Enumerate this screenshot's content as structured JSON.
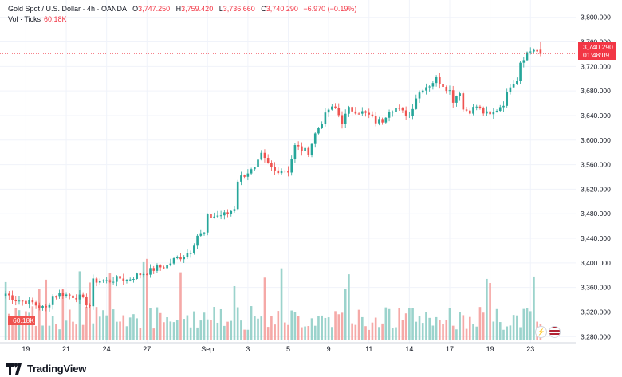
{
  "header": {
    "symbol": "Gold Spot / U.S. Dollar · 4h · OANDA",
    "open_label": "O",
    "open": "3,747.250",
    "high_label": "H",
    "high": "3,759.420",
    "low_label": "L",
    "low": "3,736.660",
    "close_label": "C",
    "close": "3,740.290",
    "change": "−6.970 (−0.19%)"
  },
  "volume_header": {
    "label": "Vol · Ticks",
    "value": "60.18K"
  },
  "last_price_tag": {
    "price": "3,740.290",
    "countdown": "01:48:09"
  },
  "volume_tag": "60.18K",
  "logo_text": "TradingView",
  "badges": {
    "flash": "⚡",
    "flag": "US flag"
  },
  "colors": {
    "up": "#26a69a",
    "down": "#ef5350",
    "up_vol": "#9bd3cc",
    "down_vol": "#f5a9a7",
    "grid": "#f0f3fa"
  },
  "chart_data": {
    "type": "candlestick",
    "title": "Gold Spot / U.S. Dollar · 4h · OANDA",
    "ylim": [
      3270,
      3810
    ],
    "y_ticks": [
      3280,
      3320,
      3360,
      3400,
      3440,
      3480,
      3520,
      3560,
      3600,
      3640,
      3680,
      3720,
      3760,
      3800
    ],
    "y_tick_labels": [
      "3,280.000",
      "3,320.000",
      "3,360.000",
      "3,400.000",
      "3,440.000",
      "3,480.000",
      "3,520.000",
      "3,560.000",
      "3,600.000",
      "3,640.000",
      "3,680.000",
      "3,720.000",
      "3,760.000",
      "3,800.000"
    ],
    "x_ticks": [
      {
        "label": "19",
        "index": 6
      },
      {
        "label": "21",
        "index": 18
      },
      {
        "label": "24",
        "index": 30
      },
      {
        "label": "27",
        "index": 42
      },
      {
        "label": "Sep",
        "index": 60
      },
      {
        "label": "3",
        "index": 72
      },
      {
        "label": "5",
        "index": 84
      },
      {
        "label": "9",
        "index": 96
      },
      {
        "label": "11",
        "index": 108
      },
      {
        "label": "14",
        "index": 120
      },
      {
        "label": "17",
        "index": 132
      },
      {
        "label": "19",
        "index": 144
      },
      {
        "label": "23",
        "index": 156
      }
    ],
    "num_candles": 160,
    "anchors": [
      [
        0,
        3350
      ],
      [
        3,
        3340
      ],
      [
        5,
        3338
      ],
      [
        8,
        3335
      ],
      [
        10,
        3328
      ],
      [
        12,
        3326
      ],
      [
        14,
        3345
      ],
      [
        16,
        3350
      ],
      [
        18,
        3348
      ],
      [
        20,
        3346
      ],
      [
        22,
        3344
      ],
      [
        25,
        3330
      ],
      [
        26,
        3370
      ],
      [
        28,
        3372
      ],
      [
        30,
        3370
      ],
      [
        34,
        3375
      ],
      [
        36,
        3372
      ],
      [
        39,
        3380
      ],
      [
        42,
        3385
      ],
      [
        45,
        3392
      ],
      [
        48,
        3395
      ],
      [
        50,
        3405
      ],
      [
        53,
        3412
      ],
      [
        55,
        3420
      ],
      [
        57,
        3445
      ],
      [
        59,
        3448
      ],
      [
        60,
        3475
      ],
      [
        62,
        3476
      ],
      [
        64,
        3478
      ],
      [
        66,
        3480
      ],
      [
        68,
        3490
      ],
      [
        69,
        3535
      ],
      [
        70,
        3540
      ],
      [
        72,
        3548
      ],
      [
        74,
        3552
      ],
      [
        76,
        3575
      ],
      [
        78,
        3560
      ],
      [
        80,
        3550
      ],
      [
        82,
        3552
      ],
      [
        84,
        3550
      ],
      [
        86,
        3590
      ],
      [
        88,
        3585
      ],
      [
        90,
        3580
      ],
      [
        92,
        3610
      ],
      [
        94,
        3630
      ],
      [
        96,
        3650
      ],
      [
        98,
        3652
      ],
      [
        100,
        3630
      ],
      [
        102,
        3650
      ],
      [
        104,
        3648
      ],
      [
        106,
        3645
      ],
      [
        108,
        3640
      ],
      [
        110,
        3630
      ],
      [
        112,
        3632
      ],
      [
        114,
        3650
      ],
      [
        116,
        3652
      ],
      [
        118,
        3645
      ],
      [
        120,
        3640
      ],
      [
        122,
        3670
      ],
      [
        124,
        3685
      ],
      [
        126,
        3690
      ],
      [
        128,
        3700
      ],
      [
        130,
        3690
      ],
      [
        132,
        3680
      ],
      [
        133,
        3665
      ],
      [
        135,
        3680
      ],
      [
        136,
        3650
      ],
      [
        138,
        3648
      ],
      [
        140,
        3655
      ],
      [
        142,
        3645
      ],
      [
        144,
        3640
      ],
      [
        146,
        3650
      ],
      [
        148,
        3660
      ],
      [
        150,
        3690
      ],
      [
        152,
        3700
      ],
      [
        153,
        3728
      ],
      [
        155,
        3742
      ],
      [
        157,
        3748
      ],
      [
        159,
        3740
      ]
    ],
    "last": {
      "open": 3747.25,
      "high": 3759.42,
      "low": 3736.66,
      "close": 3740.29
    }
  }
}
